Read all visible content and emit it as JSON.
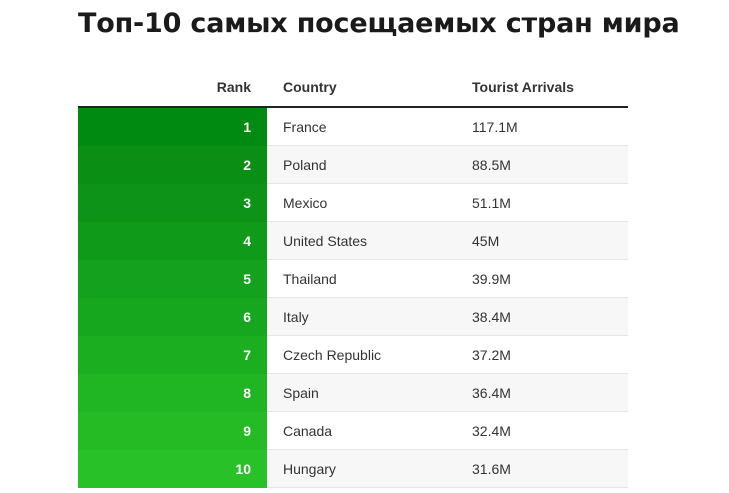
{
  "title": "Топ-10 самых посещаемых стран мира",
  "chart_data": {
    "type": "table",
    "title": "Топ-10 самых посещаемых стран мира",
    "columns": [
      "Rank",
      "Country",
      "Tourist Arrivals"
    ],
    "rows": [
      {
        "rank": "1",
        "country": "France",
        "arrivals": "117.1M"
      },
      {
        "rank": "2",
        "country": "Poland",
        "arrivals": "88.5M"
      },
      {
        "rank": "3",
        "country": "Mexico",
        "arrivals": "51.1M"
      },
      {
        "rank": "4",
        "country": "United States",
        "arrivals": "45M"
      },
      {
        "rank": "5",
        "country": "Thailand",
        "arrivals": "39.9M"
      },
      {
        "rank": "6",
        "country": "Italy",
        "arrivals": "38.4M"
      },
      {
        "rank": "7",
        "country": "Czech Republic",
        "arrivals": "37.2M"
      },
      {
        "rank": "8",
        "country": "Spain",
        "arrivals": "36.4M"
      },
      {
        "rank": "9",
        "country": "Canada",
        "arrivals": "32.4M"
      },
      {
        "rank": "10",
        "country": "Hungary",
        "arrivals": "31.6M"
      }
    ],
    "rank_colors": [
      "#008a12",
      "#0a8f14",
      "#0d9418",
      "#109a1a",
      "#14a11d",
      "#17a71f",
      "#1cae21",
      "#20b523",
      "#24bb25",
      "#28c228"
    ]
  }
}
